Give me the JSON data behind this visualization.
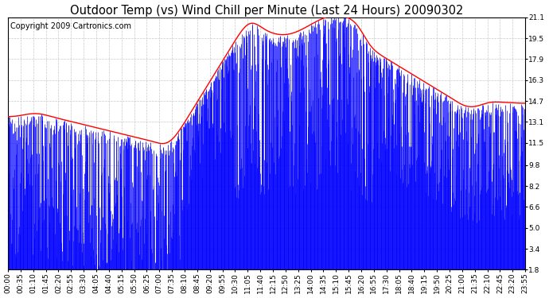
{
  "title": "Outdoor Temp (vs) Wind Chill per Minute (Last 24 Hours) 20090302",
  "copyright_text": "Copyright 2009 Cartronics.com",
  "y_ticks": [
    1.8,
    3.4,
    5.0,
    6.6,
    8.2,
    9.8,
    11.5,
    13.1,
    14.7,
    16.3,
    17.9,
    19.5,
    21.1
  ],
  "y_min": 1.8,
  "y_max": 21.1,
  "x_tick_labels": [
    "00:00",
    "00:35",
    "01:10",
    "01:45",
    "02:20",
    "02:55",
    "03:30",
    "04:05",
    "04:40",
    "05:15",
    "05:50",
    "06:25",
    "07:00",
    "07:35",
    "08:10",
    "08:45",
    "09:20",
    "09:55",
    "10:30",
    "11:05",
    "11:40",
    "12:15",
    "12:50",
    "13:25",
    "14:00",
    "14:35",
    "15:10",
    "15:45",
    "16:20",
    "16:55",
    "17:30",
    "18:05",
    "18:40",
    "19:15",
    "19:50",
    "20:25",
    "21:00",
    "21:35",
    "22:10",
    "22:45",
    "23:20",
    "23:55"
  ],
  "background_color": "#ffffff",
  "plot_bg_color": "#ffffff",
  "bar_color": "#0000ff",
  "line_color": "#ff0000",
  "grid_color": "#bbbbbb",
  "title_fontsize": 10.5,
  "copyright_fontsize": 7,
  "tick_fontsize": 6.5
}
